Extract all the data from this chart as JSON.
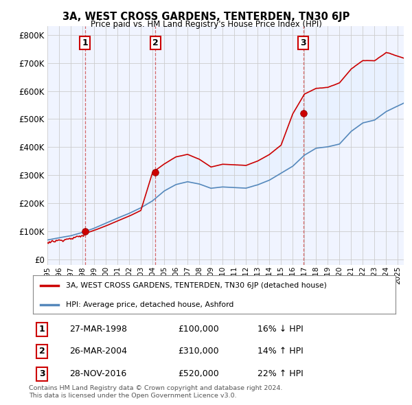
{
  "title": "3A, WEST CROSS GARDENS, TENTERDEN, TN30 6JP",
  "subtitle": "Price paid vs. HM Land Registry's House Price Index (HPI)",
  "ylabel_ticks": [
    "£0",
    "£100K",
    "£200K",
    "£300K",
    "£400K",
    "£500K",
    "£600K",
    "£700K",
    "£800K"
  ],
  "ytick_values": [
    0,
    100000,
    200000,
    300000,
    400000,
    500000,
    600000,
    700000,
    800000
  ],
  "ylim": [
    -20000,
    830000
  ],
  "xlim_start": 1995.0,
  "xlim_end": 2025.5,
  "sale_dates": [
    1998.23,
    2004.23,
    2016.91
  ],
  "sale_prices": [
    100000,
    310000,
    520000
  ],
  "sale_labels": [
    "1",
    "2",
    "3"
  ],
  "sale_date_strings": [
    "27-MAR-1998",
    "26-MAR-2004",
    "28-NOV-2016"
  ],
  "sale_price_strings": [
    "£100,000",
    "£310,000",
    "£520,000"
  ],
  "sale_hpi_strings": [
    "16% ↓ HPI",
    "14% ↑ HPI",
    "22% ↑ HPI"
  ],
  "red_line_color": "#cc0000",
  "blue_line_color": "#5588bb",
  "fill_color": "#ddeeff",
  "marker_box_color": "#cc0000",
  "grid_color": "#cccccc",
  "background_color": "#ffffff",
  "chart_bg_color": "#f0f4ff",
  "legend_label_red": "3A, WEST CROSS GARDENS, TENTERDEN, TN30 6JP (detached house)",
  "legend_label_blue": "HPI: Average price, detached house, Ashford",
  "footnote1": "Contains HM Land Registry data © Crown copyright and database right 2024.",
  "footnote2": "This data is licensed under the Open Government Licence v3.0."
}
